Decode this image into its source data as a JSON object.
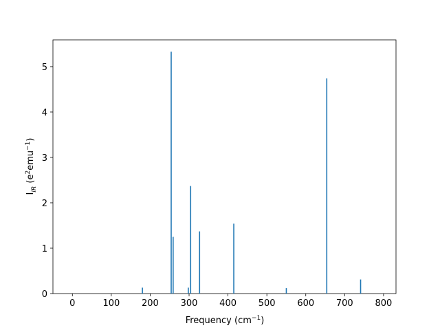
{
  "chart_data": {
    "type": "bar",
    "x": [
      180,
      254,
      259,
      298,
      304,
      327,
      415,
      550,
      654,
      741
    ],
    "values": [
      0.13,
      5.33,
      1.25,
      0.13,
      2.37,
      1.37,
      1.54,
      0.12,
      4.74,
      0.31
    ],
    "color": "#1f77b4",
    "xlim": [
      -50,
      832
    ],
    "ylim": [
      0,
      5.59
    ],
    "xticks": [
      0,
      100,
      200,
      300,
      400,
      500,
      600,
      700,
      800
    ],
    "yticks": [
      0,
      1,
      2,
      3,
      4,
      5
    ],
    "xlabel": [
      "Frequency (cm",
      "−1",
      ")"
    ],
    "ylabel": [
      "I",
      "IR",
      " (e",
      "2",
      "emu",
      "−1",
      ")"
    ]
  }
}
